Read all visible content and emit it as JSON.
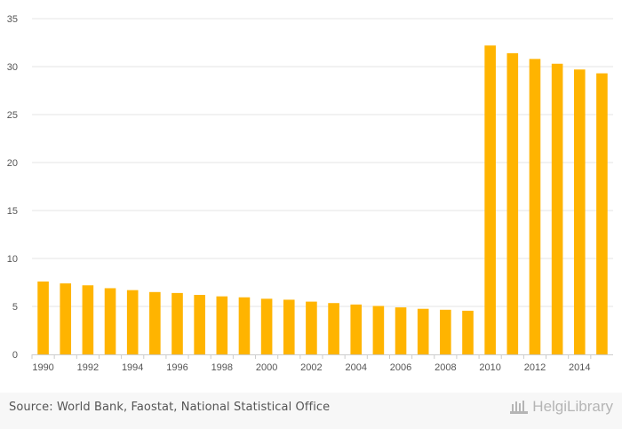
{
  "chart_data": {
    "type": "bar",
    "categories": [
      "1990",
      "1991",
      "1992",
      "1993",
      "1994",
      "1995",
      "1996",
      "1997",
      "1998",
      "1999",
      "2000",
      "2001",
      "2002",
      "2003",
      "2004",
      "2005",
      "2006",
      "2007",
      "2008",
      "2009",
      "2010",
      "2011",
      "2012",
      "2013",
      "2014",
      "2015"
    ],
    "x_tick_labels": [
      "1990",
      "1992",
      "1994",
      "1996",
      "1998",
      "2000",
      "2002",
      "2004",
      "2006",
      "2008",
      "2010",
      "2012",
      "2014"
    ],
    "values": [
      7.6,
      7.4,
      7.2,
      6.9,
      6.7,
      6.5,
      6.4,
      6.2,
      6.05,
      5.95,
      5.8,
      5.7,
      5.5,
      5.35,
      5.2,
      5.05,
      4.9,
      4.75,
      4.65,
      4.55,
      32.2,
      31.4,
      30.8,
      30.3,
      29.7,
      29.3
    ],
    "ylim": [
      0,
      35
    ],
    "y_ticks": [
      0,
      5,
      10,
      15,
      20,
      25,
      30,
      35
    ],
    "grid": true,
    "bar_color": "#ffb400",
    "title": "",
    "xlabel": "",
    "ylabel": ""
  },
  "footer": {
    "source": "Source: World Bank, Faostat, National Statistical Office",
    "logo_text": "HelgiLibrary"
  }
}
